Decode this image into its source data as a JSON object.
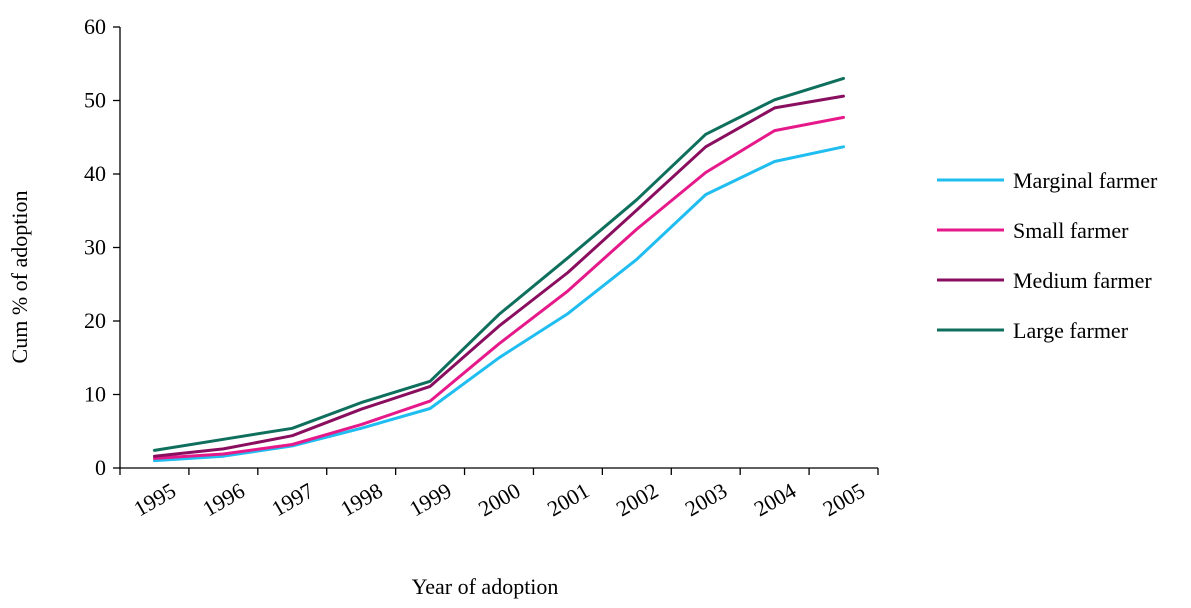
{
  "chart_data": {
    "type": "line",
    "title": "",
    "xlabel": "Year of adoption",
    "ylabel": "Cum % of adoption",
    "categories": [
      "1995",
      "1996",
      "1997",
      "1998",
      "1999",
      "2000",
      "2001",
      "2002",
      "2003",
      "2004",
      "2005"
    ],
    "ylim": [
      0,
      60
    ],
    "yticks": [
      "0",
      "10",
      "20",
      "30",
      "40",
      "50",
      "60"
    ],
    "grid": false,
    "legend_position": "right",
    "series": [
      {
        "name": "Marginal farmer",
        "color": "#1fbdf0",
        "values": [
          1.0,
          1.6,
          3.0,
          5.4,
          8.1,
          15.0,
          21.0,
          28.4,
          37.2,
          41.7,
          43.7
        ]
      },
      {
        "name": "Small farmer",
        "color": "#e6198a",
        "values": [
          1.3,
          1.9,
          3.2,
          5.9,
          9.1,
          16.9,
          24.1,
          32.5,
          40.2,
          45.9,
          47.7
        ]
      },
      {
        "name": "Medium farmer",
        "color": "#8a0e5f",
        "values": [
          1.6,
          2.6,
          4.4,
          8.0,
          11.1,
          19.3,
          26.6,
          35.1,
          43.7,
          49.0,
          50.6
        ]
      },
      {
        "name": "Large farmer",
        "color": "#0f6f5d",
        "values": [
          2.4,
          3.9,
          5.4,
          8.9,
          11.8,
          20.9,
          28.6,
          36.5,
          45.4,
          50.1,
          53.0
        ]
      }
    ]
  }
}
